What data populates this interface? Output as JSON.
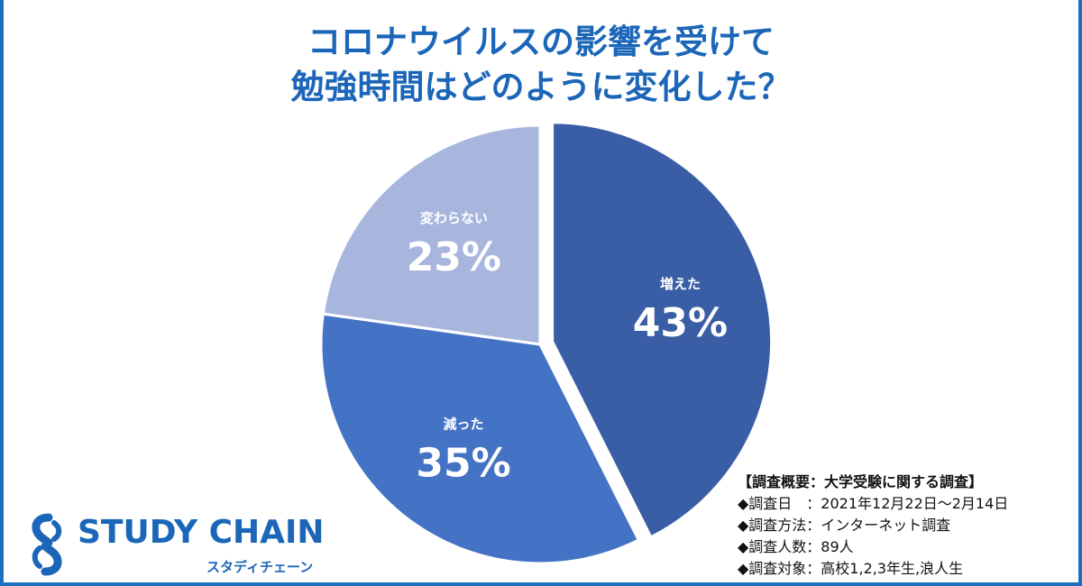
{
  "title": {
    "line1": "コロナウイルスの影響を受けて",
    "line2": "勉強時間はどのように変化した？"
  },
  "chart_data": {
    "type": "pie",
    "slices": [
      {
        "label": "増えた",
        "value": 43,
        "value_label": "43%",
        "color": "#3a5ea6"
      },
      {
        "label": "減った",
        "value": 35,
        "value_label": "35%",
        "color": "#4472c4"
      },
      {
        "label": "変わらない",
        "value": 23,
        "value_label": "23%",
        "color": "#a8b6de"
      }
    ],
    "start_angle_deg": 0,
    "direction": "clockwise",
    "exploded_slice": "増えた"
  },
  "logo": {
    "name": "STUDY CHAIN",
    "sub": "スタディチェーン"
  },
  "survey": {
    "heading": "【調査概要：大学受験に関する調査】",
    "lines": [
      "◆調査日　：2021年12月22日〜2月14日",
      "◆調査方法：インターネット調査",
      "◆調査人数：89人",
      "◆調査対象：高校1,2,3年生,浪人生"
    ]
  },
  "colors": {
    "accent": "#1b66b8",
    "frame": "#1f6fc0"
  }
}
